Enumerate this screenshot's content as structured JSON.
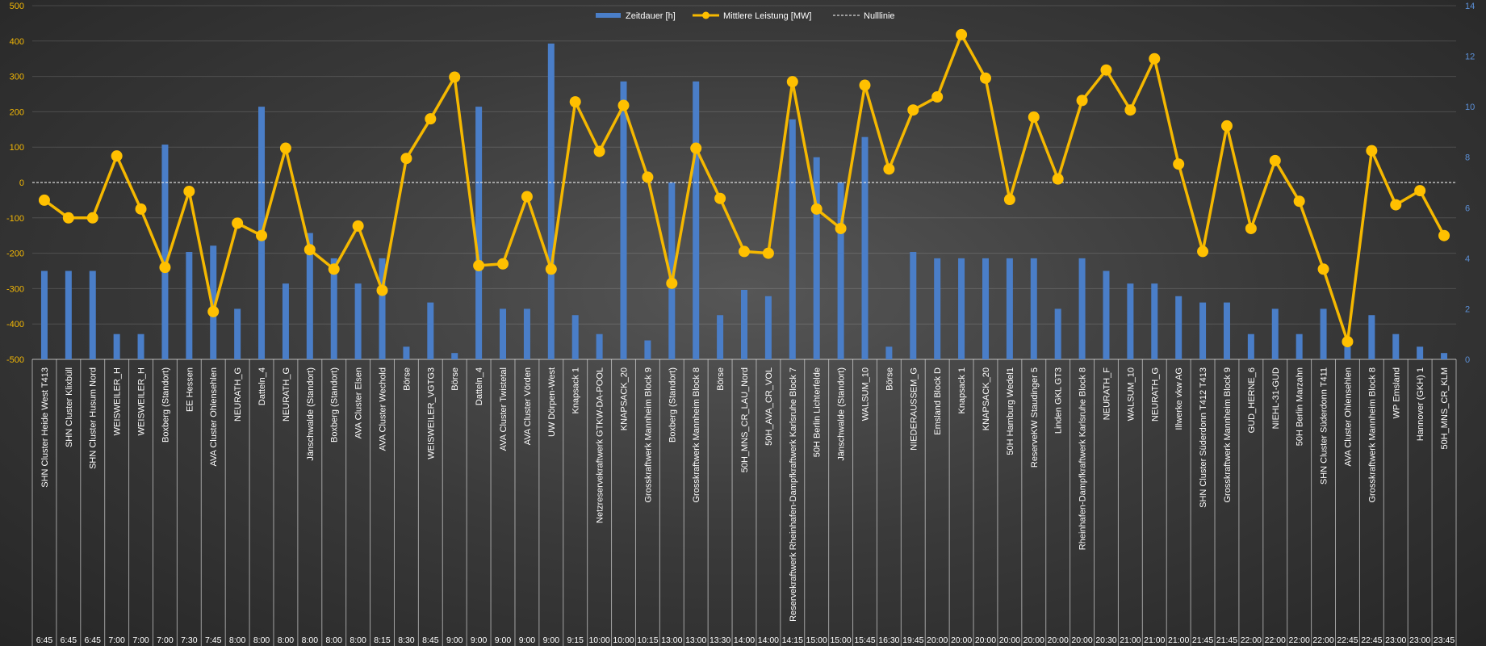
{
  "chart_data": {
    "type": "bar+line",
    "legend": {
      "bar_label": "Zeitdauer [h]",
      "line_label": "Mittlere Leistung [MW]",
      "zero_label": "Nulllinie",
      "position": "top-center"
    },
    "y_left": {
      "min": -500,
      "max": 500,
      "step": 100,
      "ticks": [
        "500",
        "400",
        "300",
        "200",
        "100",
        "0",
        "-100",
        "-200",
        "-300",
        "-400",
        "-500"
      ]
    },
    "y_right": {
      "min": 0,
      "max": 14,
      "step": 2,
      "ticks": [
        "14",
        "12",
        "10",
        "8",
        "6",
        "4",
        "2",
        "0"
      ]
    },
    "colors": {
      "bar": "#4a7ec8",
      "line": "#f5b800",
      "marker": "#ffc000",
      "zero": "#ffffff",
      "left_axis": "#f2b705",
      "right_axis": "#5b8fd6",
      "text": "#ffffff"
    },
    "categories": [
      "SHN Cluster Heide West T413",
      "SHN Cluster Klixbüll",
      "SHN Cluster Husum Nord",
      "WEISWEILER_H",
      "WEISWEILER_H",
      "Boxberg (Standort)",
      "EE Hessen",
      "AVA Cluster Ohlensehlen",
      "NEURATH_G",
      "Datteln_4",
      "NEURATH_G",
      "Jänschwalde (Standort)",
      "Boxberg (Standort)",
      "AVA Cluster Elsen",
      "AVA Cluster Wechold",
      "Börse",
      "WEISWEILER_VGTG3",
      "Börse",
      "Datteln_4",
      "AVA Cluster Twistetal",
      "AVA Cluster Vörden",
      "UW Dörpen-West",
      "Knapsack 1",
      "Netzreservekraftwerk GTKW-DA-POOL",
      "KNAPSACK_20",
      "Grosskraftwerk Mannheim Block 9",
      "Boxberg (Standort)",
      "Grosskraftwerk Mannheim Block 8",
      "Börse",
      "50H_MNS_CR_LAU_Nord",
      "50H_AVA_CR_VOL",
      "Reservekraftwerk Rheinhafen-Dampfkraftwerk Karlsruhe Block 7",
      "50H Berlin Lichterfelde",
      "Jänschwalde (Standort)",
      "WALSUM_10",
      "Börse",
      "NIEDERAUSSEM_G",
      "Emsland Block D",
      "Knapsack 1",
      "KNAPSACK_20",
      "50H Hamburg Wedel1",
      "ReserveKW Staudinger 5",
      "Linden GKL GT3",
      "Rheinhafen-Dampfkraftwerk Karlsruhe Block 8",
      "NEURATH_F",
      "WALSUM_10",
      "NEURATH_G",
      "Illwerke vkw AG",
      "SHN Cluster Süderdonn T412 T413",
      "Grosskraftwerk Mannheim Block 9",
      "GUD_HERNE_6",
      "NIEHL-31-GUD",
      "50H Berlin Marzahn",
      "SHN Cluster Süderdonn T411",
      "AVA Cluster Ohlensehlen",
      "Grosskraftwerk Mannheim Block 8",
      "WP Emsland",
      "Hannover (GKH) 1",
      "50H_MNS_CR_KLM"
    ],
    "times": [
      "6:45",
      "6:45",
      "6:45",
      "7:00",
      "7:00",
      "7:00",
      "7:30",
      "7:45",
      "8:00",
      "8:00",
      "8:00",
      "8:00",
      "8:00",
      "8:00",
      "8:15",
      "8:30",
      "8:45",
      "9:00",
      "9:00",
      "9:00",
      "9:00",
      "9:00",
      "9:15",
      "10:00",
      "10:00",
      "10:15",
      "13:00",
      "13:00",
      "13:30",
      "14:00",
      "14:00",
      "14:15",
      "15:00",
      "15:00",
      "15:45",
      "16:30",
      "19:45",
      "20:00",
      "20:00",
      "20:00",
      "20:00",
      "20:00",
      "20:00",
      "20:00",
      "20:30",
      "21:00",
      "21:00",
      "21:00",
      "21:45",
      "21:45",
      "22:00",
      "22:00",
      "22:00",
      "22:00",
      "22:45",
      "22:45",
      "23:00",
      "23:00",
      "23:45"
    ],
    "series": [
      {
        "name": "Zeitdauer [h]",
        "type": "bar",
        "axis": "right",
        "values": [
          3.5,
          3.5,
          3.5,
          1,
          1,
          8.5,
          4.25,
          4.5,
          2,
          10,
          3,
          5,
          4,
          3,
          4,
          0.5,
          2.25,
          0.25,
          10,
          2,
          2,
          12.5,
          1.75,
          1,
          11,
          0.75,
          7,
          11,
          1.75,
          2.75,
          2.5,
          9.5,
          8,
          7,
          8.8,
          0.5,
          4.25,
          4,
          4,
          4,
          4,
          4,
          2,
          4,
          3.5,
          3,
          3,
          2.5,
          2.25,
          2.25,
          1,
          2,
          1,
          2,
          0.5,
          1.75,
          1,
          0.5,
          0.25
        ]
      },
      {
        "name": "Mittlere Leistung [MW]",
        "type": "line",
        "axis": "left",
        "values": [
          -50,
          -100,
          -100,
          75,
          -75,
          -240,
          -25,
          -365,
          -115,
          -150,
          97,
          -190,
          -245,
          -123,
          -305,
          68,
          180,
          298,
          -235,
          -230,
          -40,
          -245,
          228,
          88,
          218,
          15,
          -285,
          97,
          -45,
          -195,
          -200,
          285,
          -75,
          -130,
          275,
          38,
          205,
          242,
          418,
          295,
          -48,
          185,
          10,
          232,
          318,
          205,
          350,
          52,
          -195,
          160,
          -130,
          62,
          -53,
          -245,
          -450,
          90,
          -63,
          -23,
          -150
        ]
      }
    ]
  }
}
